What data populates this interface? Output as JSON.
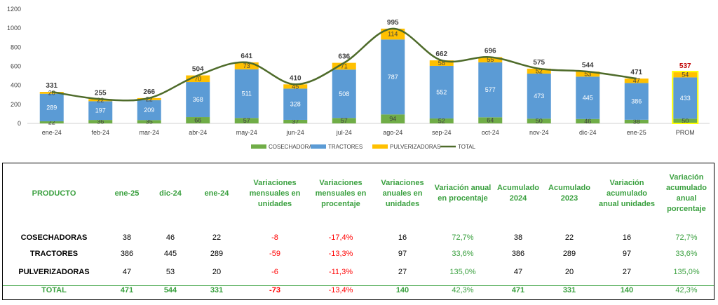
{
  "chart_data": {
    "type": "bar",
    "stacked": true,
    "categories": [
      "ene-24",
      "feb-24",
      "mar-24",
      "abr-24",
      "may-24",
      "jun-24",
      "jul-24",
      "ago-24",
      "sep-24",
      "oct-24",
      "nov-24",
      "dic-24",
      "ene-25",
      "PROM"
    ],
    "series": [
      {
        "name": "COSECHADORAS",
        "color": "#70ad47",
        "values": [
          22,
          36,
          35,
          66,
          57,
          37,
          57,
          94,
          52,
          64,
          50,
          46,
          38,
          50
        ]
      },
      {
        "name": "TRACTORES",
        "color": "#5b9bd5",
        "values": [
          289,
          197,
          209,
          368,
          511,
          328,
          508,
          787,
          552,
          577,
          473,
          445,
          386,
          433
        ]
      },
      {
        "name": "PULVERIZADORAS",
        "color": "#ffc000",
        "values": [
          20,
          22,
          22,
          70,
          73,
          45,
          71,
          114,
          58,
          55,
          52,
          53,
          47,
          54
        ]
      },
      {
        "name": "TOTAL",
        "type": "line",
        "color": "#4e6b2a",
        "values": [
          331,
          255,
          266,
          504,
          641,
          410,
          636,
          995,
          662,
          696,
          575,
          544,
          471,
          null
        ]
      }
    ],
    "totals_labels": [
      "331",
      "255",
      "266",
      "504",
      "641",
      "410",
      "636",
      "995",
      "662",
      "696",
      "575",
      "544",
      "471",
      "537"
    ],
    "highlight_total_color": "#c00000",
    "ylim": [
      0,
      1200
    ],
    "yticks": [
      0,
      200,
      400,
      600,
      800,
      1000,
      1200
    ],
    "legend_position": "bottom",
    "grid": false
  },
  "table": {
    "headers": [
      "PRODUCTO",
      "ene-25",
      "dic-24",
      "ene-24",
      "Variaciones mensuales en unidades",
      "Variaciones mensuales en procentaje",
      "Variaciones anuales en unidades",
      "Variación anual en procentaje",
      "Acumulado 2024",
      "Acumulado 2023",
      "Variación acumulado anual unidades",
      "Variación acumulado anual porcentaje"
    ],
    "rows": [
      [
        "COSECHADORAS",
        "38",
        "46",
        "22",
        "-8",
        "-17,4%",
        "16",
        "72,7%",
        "38",
        "22",
        "16",
        "72,7%"
      ],
      [
        "TRACTORES",
        "386",
        "445",
        "289",
        "-59",
        "-13,3%",
        "97",
        "33,6%",
        "386",
        "289",
        "97",
        "33,6%"
      ],
      [
        "PULVERIZADORAS",
        "47",
        "53",
        "20",
        "-6",
        "-11,3%",
        "27",
        "135,0%",
        "47",
        "20",
        "27",
        "135,0%"
      ],
      [
        "TOTAL",
        "471",
        "544",
        "331",
        "-73",
        "-13,4%",
        "140",
        "42,3%",
        "471",
        "331",
        "140",
        "42,3%"
      ]
    ]
  }
}
